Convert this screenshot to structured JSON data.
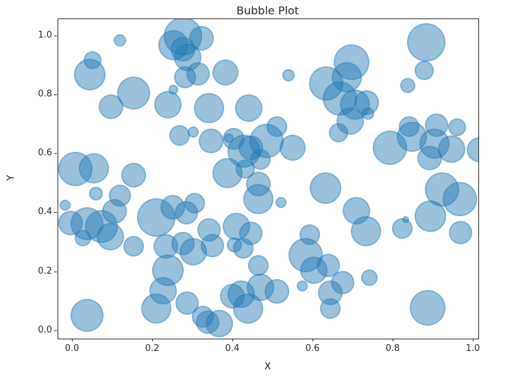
{
  "chart_data": {
    "type": "scatter",
    "subtype": "bubble",
    "title": "Bubble Plot",
    "xlabel": "X",
    "ylabel": "Y",
    "xlim": [
      -0.036,
      1.012
    ],
    "ylim": [
      -0.026,
      1.057
    ],
    "x_ticks": [
      {
        "value": 0.0,
        "label": "0.0"
      },
      {
        "value": 0.2,
        "label": "0.2"
      },
      {
        "value": 0.4,
        "label": "0.4"
      },
      {
        "value": 0.6,
        "label": "0.6"
      },
      {
        "value": 0.8,
        "label": "0.8"
      },
      {
        "value": 1.0,
        "label": "1.0"
      }
    ],
    "y_ticks": [
      {
        "value": 0.0,
        "label": "0.0"
      },
      {
        "value": 0.2,
        "label": "0.2"
      },
      {
        "value": 0.4,
        "label": "0.4"
      },
      {
        "value": 0.6,
        "label": "0.6"
      },
      {
        "value": 0.8,
        "label": "0.8"
      },
      {
        "value": 1.0,
        "label": "1.0"
      }
    ],
    "grid": false,
    "legend": null,
    "marker_color": "#1f77b4",
    "marker_alpha": 0.5,
    "point_format": "[x, y, radius_px]",
    "points": [
      [
        0.118,
        0.984,
        9
      ],
      [
        0.049,
        0.919,
        13
      ],
      [
        0.043,
        0.868,
        23
      ],
      [
        0.096,
        0.761,
        18
      ],
      [
        0.152,
        0.807,
        24
      ],
      [
        0.276,
        1.0,
        28
      ],
      [
        0.251,
        0.97,
        22
      ],
      [
        0.276,
        0.954,
        18
      ],
      [
        0.287,
        0.926,
        20
      ],
      [
        0.312,
        0.872,
        17
      ],
      [
        0.28,
        0.861,
        16
      ],
      [
        0.251,
        0.819,
        7
      ],
      [
        0.237,
        0.768,
        20
      ],
      [
        0.321,
        0.993,
        18
      ],
      [
        0.382,
        0.877,
        19
      ],
      [
        0.34,
        0.756,
        22
      ],
      [
        0.439,
        0.756,
        20
      ],
      [
        0.51,
        0.694,
        15
      ],
      [
        0.539,
        0.866,
        9
      ],
      [
        0.696,
        0.912,
        26
      ],
      [
        0.683,
        0.861,
        22
      ],
      [
        0.633,
        0.838,
        25
      ],
      [
        0.666,
        0.789,
        25
      ],
      [
        0.705,
        0.768,
        22
      ],
      [
        0.734,
        0.773,
        18
      ],
      [
        0.737,
        0.738,
        9
      ],
      [
        0.693,
        0.712,
        20
      ],
      [
        0.882,
        0.977,
        28
      ],
      [
        0.877,
        0.882,
        14
      ],
      [
        0.836,
        0.833,
        11
      ],
      [
        0.84,
        0.694,
        15
      ],
      [
        0.908,
        0.698,
        17
      ],
      [
        0.959,
        0.691,
        13
      ],
      [
        0.345,
        0.645,
        18
      ],
      [
        0.401,
        0.652,
        16
      ],
      [
        0.389,
        0.654,
        7
      ],
      [
        0.427,
        0.61,
        24
      ],
      [
        0.483,
        0.645,
        25
      ],
      [
        0.445,
        0.622,
        18
      ],
      [
        0.548,
        0.622,
        19
      ],
      [
        0.469,
        0.582,
        15
      ],
      [
        0.43,
        0.55,
        14
      ],
      [
        0.386,
        0.536,
        22
      ],
      [
        0.464,
        0.499,
        18
      ],
      [
        0.464,
        0.448,
        22
      ],
      [
        0.519,
        0.436,
        8
      ],
      [
        0.664,
        0.673,
        14
      ],
      [
        0.63,
        0.485,
        23
      ],
      [
        0.792,
        0.622,
        25
      ],
      [
        0.846,
        0.657,
        22
      ],
      [
        0.903,
        0.636,
        22
      ],
      [
        0.891,
        0.587,
        18
      ],
      [
        0.945,
        0.617,
        20
      ],
      [
        1.014,
        0.615,
        18
      ],
      [
        0.922,
        0.48,
        25
      ],
      [
        0.966,
        0.446,
        25
      ],
      [
        0.892,
        0.39,
        23
      ],
      [
        0.707,
        0.408,
        20
      ],
      [
        0.732,
        0.339,
        22
      ],
      [
        0.831,
        0.378,
        5
      ],
      [
        0.822,
        0.348,
        15
      ],
      [
        0.968,
        0.334,
        17
      ],
      [
        0.007,
        0.548,
        25
      ],
      [
        0.053,
        0.552,
        22
      ],
      [
        0.058,
        0.466,
        10
      ],
      [
        0.118,
        0.459,
        16
      ],
      [
        0.152,
        0.529,
        18
      ],
      [
        0.104,
        0.406,
        18
      ],
      [
        -0.005,
        0.367,
        18
      ],
      [
        0.036,
        0.364,
        24
      ],
      [
        0.072,
        0.355,
        24
      ],
      [
        0.094,
        0.32,
        20
      ],
      [
        0.026,
        0.316,
        12
      ],
      [
        0.208,
        0.385,
        28
      ],
      [
        0.249,
        0.42,
        18
      ],
      [
        0.283,
        0.401,
        17
      ],
      [
        0.305,
        0.434,
        15
      ],
      [
        0.266,
        0.663,
        15
      ],
      [
        0.3,
        0.675,
        8
      ],
      [
        0.036,
        0.053,
        24
      ],
      [
        0.152,
        0.288,
        15
      ],
      [
        0.232,
        0.288,
        18
      ],
      [
        0.275,
        0.297,
        17
      ],
      [
        0.3,
        0.269,
        20
      ],
      [
        0.237,
        0.207,
        23
      ],
      [
        0.225,
        0.137,
        20
      ],
      [
        0.285,
        0.095,
        17
      ],
      [
        0.208,
        0.077,
        22
      ],
      [
        0.324,
        0.049,
        16
      ],
      [
        0.348,
        0.29,
        17
      ],
      [
        0.34,
        0.343,
        17
      ],
      [
        0.408,
        0.355,
        20
      ],
      [
        0.445,
        0.332,
        17
      ],
      [
        0.404,
        0.292,
        11
      ],
      [
        0.425,
        0.281,
        15
      ],
      [
        0.464,
        0.223,
        15
      ],
      [
        0.468,
        0.148,
        20
      ],
      [
        0.51,
        0.135,
        18
      ],
      [
        0.421,
        0.125,
        20
      ],
      [
        0.399,
        0.118,
        18
      ],
      [
        0.437,
        0.077,
        22
      ],
      [
        0.336,
        0.03,
        17
      ],
      [
        0.365,
        0.026,
        20
      ],
      [
        0.582,
        0.258,
        25
      ],
      [
        0.601,
        0.207,
        20
      ],
      [
        0.573,
        0.153,
        8
      ],
      [
        0.638,
        0.223,
        17
      ],
      [
        0.643,
        0.13,
        18
      ],
      [
        0.643,
        0.077,
        15
      ],
      [
        0.592,
        0.327,
        15
      ],
      [
        0.741,
        0.181,
        12
      ],
      [
        0.674,
        0.165,
        17
      ],
      [
        0.886,
        0.079,
        26
      ],
      [
        -0.019,
        0.427,
        8
      ]
    ]
  }
}
